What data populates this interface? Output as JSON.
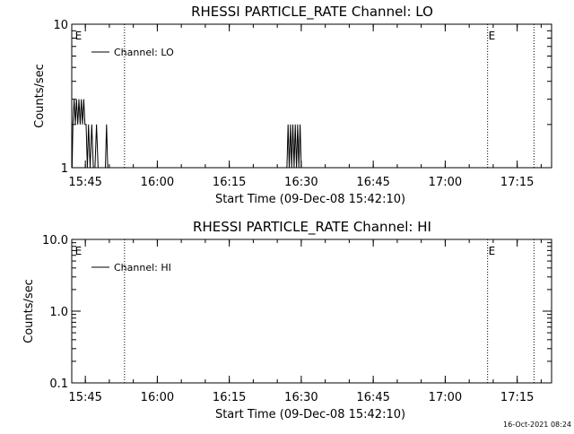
{
  "chart_data": [
    {
      "type": "line",
      "title": "RHESSI PARTICLE_RATE Channel: LO",
      "xlabel": "Start Time (09-Dec-08 15:42:10)",
      "ylabel": "Counts/sec",
      "yscale": "log",
      "ylim": [
        1,
        10
      ],
      "ytick_labels": [
        "1",
        "10"
      ],
      "x_ticks": [
        "15:45",
        "16:00",
        "16:15",
        "16:30",
        "16:45",
        "17:00",
        "17:15"
      ],
      "legend": {
        "position": "top-left",
        "entries": [
          "Channel: LO"
        ]
      },
      "event_markers": [
        {
          "time": "15:42:40",
          "label": "E",
          "dotted": false
        },
        {
          "time": "15:53:10",
          "label": "",
          "dotted": true
        },
        {
          "time": "17:08:50",
          "label": "E",
          "dotted": true
        },
        {
          "time": "17:18:30",
          "label": "",
          "dotted": true
        }
      ],
      "series": [
        {
          "name": "Channel: LO",
          "points": [
            [
              "15:42:15",
              1
            ],
            [
              "15:42:25",
              2
            ],
            [
              "15:42:40",
              3
            ],
            [
              "15:42:55",
              2
            ],
            [
              "15:43:10",
              3
            ],
            [
              "15:43:25",
              2
            ],
            [
              "15:43:40",
              3
            ],
            [
              "15:43:55",
              2
            ],
            [
              "15:44:10",
              3
            ],
            [
              "15:44:25",
              2
            ],
            [
              "15:44:40",
              3
            ],
            [
              "15:44:55",
              2
            ],
            [
              "15:45:10",
              2
            ],
            [
              "15:45:25",
              1
            ],
            [
              "15:45:40",
              2
            ],
            [
              "15:46:00",
              1
            ],
            [
              "15:46:20",
              2
            ],
            [
              "15:46:40",
              1
            ],
            [
              "15:47:00",
              1
            ],
            [
              "15:47:20",
              2
            ],
            [
              "15:47:40",
              1
            ],
            [
              "15:49:10",
              1
            ],
            [
              "15:49:25",
              2
            ],
            [
              "15:49:40",
              1
            ],
            [
              "16:27:00",
              1
            ],
            [
              "16:27:15",
              2
            ],
            [
              "16:27:30",
              1
            ],
            [
              "16:27:45",
              2
            ],
            [
              "16:28:00",
              1
            ],
            [
              "16:28:15",
              2
            ],
            [
              "16:28:30",
              1
            ],
            [
              "16:28:45",
              2
            ],
            [
              "16:29:00",
              1
            ],
            [
              "16:29:15",
              2
            ],
            [
              "16:29:30",
              1
            ],
            [
              "16:29:45",
              2
            ],
            [
              "16:30:00",
              1
            ]
          ]
        }
      ]
    },
    {
      "type": "line",
      "title": "RHESSI PARTICLE_RATE Channel: HI",
      "xlabel": "Start Time (09-Dec-08 15:42:10)",
      "ylabel": "Counts/sec",
      "yscale": "log",
      "ylim": [
        0.1,
        10
      ],
      "ytick_labels": [
        "0.1",
        "1.0",
        "10.0"
      ],
      "x_ticks": [
        "15:45",
        "16:00",
        "16:15",
        "16:30",
        "16:45",
        "17:00",
        "17:15"
      ],
      "legend": {
        "position": "top-left",
        "entries": [
          "Channel: HI"
        ]
      },
      "event_markers": [
        {
          "time": "15:42:40",
          "label": "E",
          "dotted": false
        },
        {
          "time": "15:53:10",
          "label": "",
          "dotted": true
        },
        {
          "time": "17:08:50",
          "label": "E",
          "dotted": true
        },
        {
          "time": "17:18:30",
          "label": "",
          "dotted": true
        }
      ],
      "series": [
        {
          "name": "Channel: HI",
          "points": []
        }
      ]
    }
  ],
  "timestamp": "16-Oct-2021 08:24"
}
